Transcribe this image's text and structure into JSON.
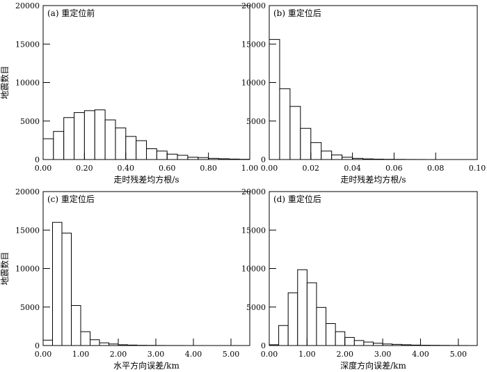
{
  "chart_data": [
    {
      "id": "a",
      "type": "bar",
      "title": "(a) 重定位前",
      "xlabel": "走时残差均方根/s",
      "ylabel": "地震数目",
      "xlim": [
        0,
        1.0
      ],
      "ylim": [
        0,
        20000
      ],
      "bin_width": 0.05,
      "values": [
        2700,
        3650,
        5450,
        6100,
        6350,
        6450,
        5150,
        4100,
        3000,
        2450,
        1400,
        1100,
        700,
        550,
        300,
        250,
        150,
        100,
        60,
        30
      ],
      "xticks": [
        "0.00",
        "0.20",
        "0.40",
        "0.60",
        "0.80",
        "1.00"
      ],
      "yticks": [
        "0",
        "5000",
        "10000",
        "15000",
        "20000"
      ],
      "grid": false
    },
    {
      "id": "b",
      "type": "bar",
      "title": "(b) 重定位后",
      "xlabel": "走时残差均方根/s",
      "ylabel": "",
      "xlim": [
        0,
        0.1
      ],
      "ylim": [
        0,
        20000
      ],
      "bin_width": 0.005,
      "values": [
        15600,
        9200,
        6900,
        4050,
        2200,
        1100,
        600,
        300,
        150,
        80,
        50,
        30,
        20,
        10,
        5,
        0,
        0,
        0,
        0,
        0
      ],
      "xticks": [
        "0.00",
        "0.02",
        "0.04",
        "0.06",
        "0.08",
        "0.10"
      ],
      "yticks": [
        "0",
        "5000",
        "10000",
        "15000",
        "20000"
      ],
      "grid": false
    },
    {
      "id": "c",
      "type": "bar",
      "title": "(c) 重定位后",
      "xlabel": "水平方向误差/km",
      "ylabel": "地震数目",
      "xlim": [
        0,
        5.5
      ],
      "ylim": [
        0,
        20000
      ],
      "bin_width": 0.25,
      "values": [
        700,
        16000,
        14600,
        5200,
        1800,
        750,
        350,
        200,
        100,
        60,
        30,
        20,
        10,
        5,
        5
      ],
      "xticks": [
        "0.00",
        "1.00",
        "2.00",
        "3.00",
        "4.00",
        "5.00"
      ],
      "yticks": [
        "0",
        "5000",
        "10000",
        "15000",
        "20000"
      ],
      "grid": false
    },
    {
      "id": "d",
      "type": "bar",
      "title": "(d) 重定位后",
      "xlabel": "深度方向误差/km",
      "ylabel": "",
      "xlim": [
        0,
        5.5
      ],
      "ylim": [
        0,
        20000
      ],
      "bin_width": 0.25,
      "values": [
        100,
        2600,
        6850,
        9850,
        8150,
        4950,
        2850,
        1800,
        1050,
        650,
        450,
        300,
        200,
        150,
        100,
        60,
        40,
        30,
        20,
        10,
        5
      ],
      "xticks": [
        "0.00",
        "1.00",
        "2.00",
        "3.00",
        "4.00",
        "5.00"
      ],
      "yticks": [
        "0",
        "5000",
        "10000",
        "15000",
        "20000"
      ],
      "grid": false
    }
  ],
  "colors": {
    "bar_fill": "#ffffff",
    "bar_stroke": "#000000",
    "axis": "#000000"
  }
}
